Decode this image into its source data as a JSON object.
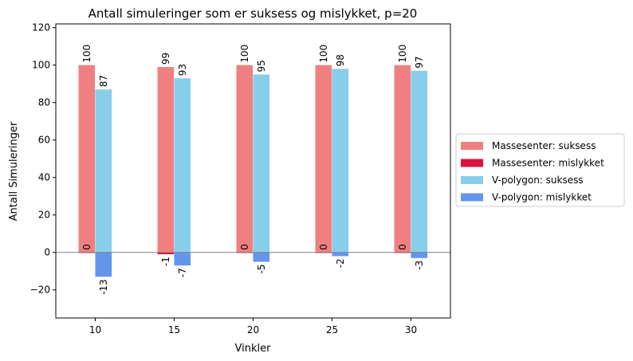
{
  "chart_data": {
    "type": "bar",
    "title": "Antall simuleringer som er suksess og mislykket, p=20",
    "xlabel": "Vinkler",
    "ylabel": "Antall Simuleringer",
    "categories": [
      "10",
      "15",
      "20",
      "25",
      "30"
    ],
    "ylim": [
      -35,
      122
    ],
    "yticks": [
      -20,
      0,
      20,
      40,
      60,
      80,
      100,
      120
    ],
    "yticklabels": [
      "−20",
      "0",
      "20",
      "40",
      "60",
      "80",
      "100",
      "120"
    ],
    "grid": false,
    "legend_position": "right, outside plot",
    "series": [
      {
        "name": "Massesenter: suksess",
        "color": "#f08080",
        "values": [
          100,
          99,
          100,
          100,
          100
        ],
        "labels": [
          "100",
          "99",
          "100",
          "100",
          "100"
        ]
      },
      {
        "name": "Massesenter: mislykket",
        "color": "#dc143c",
        "values": [
          0,
          -1,
          0,
          0,
          0
        ],
        "labels": [
          "0",
          "-1",
          "0",
          "0",
          "0"
        ]
      },
      {
        "name": "V-polygon: suksess",
        "color": "#87ceeb",
        "values": [
          87,
          93,
          95,
          98,
          97
        ],
        "labels": [
          "87",
          "93",
          "95",
          "98",
          "97"
        ]
      },
      {
        "name": "V-polygon: mislykket",
        "color": "#6495ed",
        "values": [
          -13,
          -7,
          -5,
          -2,
          -3
        ],
        "labels": [
          "-13",
          "-7",
          "-5",
          "-2",
          "-3"
        ]
      }
    ]
  }
}
